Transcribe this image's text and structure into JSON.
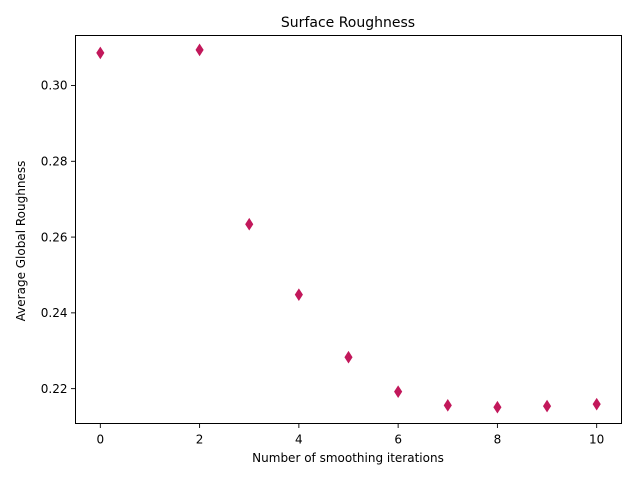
{
  "chart_data": {
    "type": "scatter",
    "title": "Surface Roughness",
    "xlabel": "Number of smoothing iterations",
    "ylabel": "Average Global Roughness",
    "xlim": [
      -0.5,
      10.5
    ],
    "ylim": [
      0.2108,
      0.3132
    ],
    "xticks": [
      0,
      2,
      4,
      6,
      8,
      10
    ],
    "yticks": [
      0.22,
      0.24,
      0.26,
      0.28,
      0.3
    ],
    "xtick_labels": [
      "0",
      "2",
      "4",
      "6",
      "8",
      "10"
    ],
    "ytick_labels": [
      "0.22",
      "0.24",
      "0.26",
      "0.28",
      "0.30"
    ],
    "marker": "thin_diamond",
    "grid": false,
    "series": [
      {
        "color": "#c2185b",
        "x": [
          0,
          2,
          3,
          4,
          5,
          6,
          7,
          8,
          9,
          10
        ],
        "y": [
          0.3086,
          0.3094,
          0.2634,
          0.2448,
          0.2283,
          0.2192,
          0.2156,
          0.2151,
          0.2154,
          0.2159
        ]
      }
    ]
  }
}
